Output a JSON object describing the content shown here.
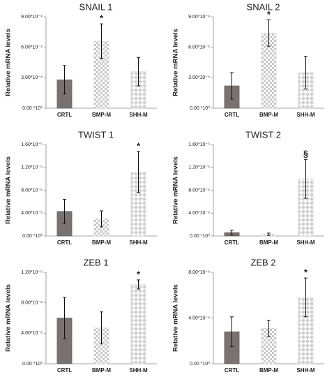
{
  "chart_data": [
    {
      "type": "bar",
      "title": "SNAIL 1",
      "ylabel": "Relative mRNA levels",
      "categories": [
        "CRTL",
        "BMP-M",
        "SHH-M"
      ],
      "values": [
        0.00028,
        0.00066,
        0.00036
      ],
      "errors": [
        0.00014,
        0.00017,
        0.00014
      ],
      "colors": [
        "#7a726e",
        "#d4d4d4",
        "#d4d4d4"
      ],
      "fills": [
        "solid",
        "checker",
        "diamond"
      ],
      "annotations": [
        {
          "category": "BMP-M",
          "text": "*"
        }
      ],
      "ylim": [
        0,
        0.0009
      ],
      "yticks": [
        {
          "value": 0,
          "label": "0.00 *10⁰"
        },
        {
          "value": 0.0003,
          "label": "3.00*10⁻⁴"
        },
        {
          "value": 0.0006,
          "label": "6.00*10⁻⁴"
        },
        {
          "value": 0.0009,
          "label": "9.00*10⁻⁴"
        }
      ]
    },
    {
      "type": "bar",
      "title": "SNAIL 2",
      "ylabel": "Relative mRNA levels",
      "categories": [
        "CRTL",
        "BMP-M",
        "SHH-M"
      ],
      "values": [
        0.00022,
        0.00074,
        0.00035
      ],
      "errors": [
        0.00013,
        0.00013,
        0.00016
      ],
      "colors": [
        "#7a726e",
        "#d4d4d4",
        "#d4d4d4"
      ],
      "fills": [
        "solid",
        "checker",
        "diamond"
      ],
      "annotations": [
        {
          "category": "BMP-M",
          "text": "*"
        }
      ],
      "ylim": [
        0,
        0.0009
      ],
      "yticks": [
        {
          "value": 0,
          "label": "0.00 *10⁰"
        },
        {
          "value": 0.0003,
          "label": "3.00*10⁻⁴"
        },
        {
          "value": 0.0006,
          "label": "6.00*10⁻⁴"
        },
        {
          "value": 0.0009,
          "label": "9.00*10⁻⁴"
        }
      ]
    },
    {
      "type": "bar",
      "title": "TWIST 1",
      "ylabel": "Relative mRNA levels",
      "categories": [
        "CRTL",
        "BMP-M",
        "SHH-M"
      ],
      "values": [
        4.3e-06,
        3e-06,
        1.12e-05
      ],
      "errors": [
        2.1e-06,
        1.4e-06,
        3.6e-06
      ],
      "colors": [
        "#7a726e",
        "#d4d4d4",
        "#d4d4d4"
      ],
      "fills": [
        "solid",
        "checker",
        "diamond"
      ],
      "annotations": [
        {
          "category": "SHH-M",
          "text": "*"
        }
      ],
      "ylim": [
        0,
        1.6e-05
      ],
      "yticks": [
        {
          "value": 0,
          "label": "0.00 *10⁰"
        },
        {
          "value": 4e-06,
          "label": "4.00*10⁻⁶"
        },
        {
          "value": 8e-06,
          "label": "8.00*10⁻⁶"
        },
        {
          "value": 1.2e-05,
          "label": "1.20*10⁻⁵"
        },
        {
          "value": 1.6e-05,
          "label": "1.60*10⁻⁵"
        }
      ]
    },
    {
      "type": "bar",
      "title": "TWIST 2",
      "ylabel": "Relative mRNA levels",
      "categories": [
        "CRTL",
        "BMP-M",
        "SHH-M"
      ],
      "values": [
        6e-07,
        3e-07,
        1e-05
      ],
      "errors": [
        4e-07,
        2e-07,
        3.4e-06
      ],
      "colors": [
        "#7a726e",
        "#d4d4d4",
        "#d4d4d4"
      ],
      "fills": [
        "solid",
        "checker",
        "diamond"
      ],
      "annotations": [
        {
          "category": "SHH-M",
          "text": "§"
        }
      ],
      "ylim": [
        0,
        1.6e-05
      ],
      "yticks": [
        {
          "value": 0,
          "label": "0.00 *10⁰"
        },
        {
          "value": 4e-06,
          "label": "4.00*10⁻⁶"
        },
        {
          "value": 8e-06,
          "label": "8.00*10⁻⁶"
        },
        {
          "value": 1.2e-05,
          "label": "1.20*10⁻⁵"
        },
        {
          "value": 1.6e-05,
          "label": "1.60*10⁻⁵"
        }
      ]
    },
    {
      "type": "bar",
      "title": "ZEB 1",
      "ylabel": "Relative mRNA levels",
      "categories": [
        "CRTL",
        "BMP-M",
        "SHH-M"
      ],
      "values": [
        6e-06,
        4.7e-06,
        1.04e-05
      ],
      "errors": [
        2.7e-06,
        2.1e-06,
        6e-07
      ],
      "colors": [
        "#7a726e",
        "#d4d4d4",
        "#d4d4d4"
      ],
      "fills": [
        "solid",
        "checker",
        "diamond"
      ],
      "annotations": [
        {
          "category": "SHH-M",
          "text": "*"
        }
      ],
      "ylim": [
        0,
        1.2e-05
      ],
      "yticks": [
        {
          "value": 0,
          "label": "0.00 *10⁰"
        },
        {
          "value": 4e-06,
          "label": "4.00*10⁻⁶"
        },
        {
          "value": 8e-06,
          "label": "8.00*10⁻⁶"
        },
        {
          "value": 1.2e-05,
          "label": "1.20*10⁻⁵"
        }
      ]
    },
    {
      "type": "bar",
      "title": "ZEB 2",
      "ylabel": "Relative mRNA levels",
      "categories": [
        "CRTL",
        "BMP-M",
        "SHH-M"
      ],
      "values": [
        2.8e-06,
        3.1e-06,
        5.8e-06
      ],
      "errors": [
        1.3e-06,
        7e-07,
        1.7e-06
      ],
      "colors": [
        "#7a726e",
        "#d4d4d4",
        "#d4d4d4"
      ],
      "fills": [
        "solid",
        "checker",
        "diamond"
      ],
      "annotations": [
        {
          "category": "SHH-M",
          "text": "*"
        }
      ],
      "ylim": [
        0,
        8e-06
      ],
      "yticks": [
        {
          "value": 0,
          "label": "0.00 *10⁰"
        },
        {
          "value": 4e-06,
          "label": "4.00*10⁻⁶"
        },
        {
          "value": 8e-06,
          "label": "8.00*10⁻⁶"
        }
      ]
    }
  ]
}
